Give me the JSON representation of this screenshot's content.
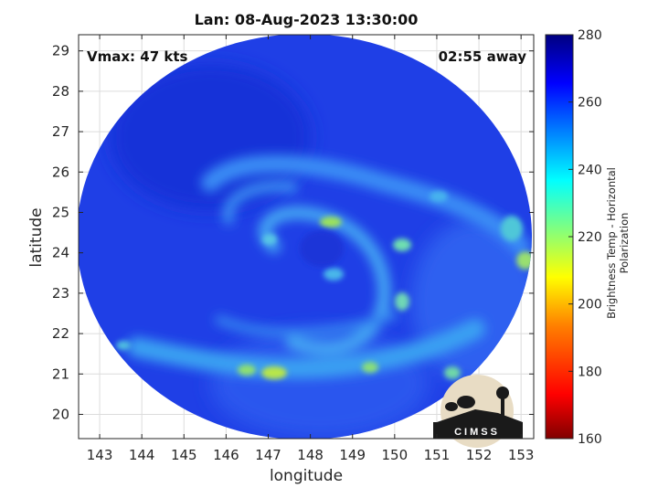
{
  "title": "Lan: 08-Aug-2023 13:30:00",
  "vmax_text": "Vmax: 47 kts",
  "away_text": "02:55 away",
  "xlabel": "longitude",
  "ylabel": "latitude",
  "x_ticks": [
    "143",
    "144",
    "145",
    "146",
    "147",
    "148",
    "149",
    "150",
    "151",
    "152",
    "153"
  ],
  "y_ticks": [
    "20",
    "21",
    "22",
    "23",
    "24",
    "25",
    "26",
    "27",
    "28",
    "29"
  ],
  "colorbar": {
    "label": "Brightness Temp - Horizontal Polarization",
    "ticks": [
      "160",
      "180",
      "200",
      "220",
      "240",
      "260",
      "280"
    ],
    "range": [
      160,
      280
    ],
    "colors": [
      "#800000",
      "#ff0000",
      "#ff8000",
      "#ffff00",
      "#80ff80",
      "#00ffff",
      "#0080ff",
      "#0000ff",
      "#000080"
    ]
  },
  "map": {
    "xlim": [
      142.5,
      153.3
    ],
    "ylim": [
      19.4,
      29.4
    ],
    "storm_center": {
      "lon": 148.4,
      "lat": 24.2
    },
    "swath_center": {
      "lon": 148.0,
      "lat": 24.3
    },
    "grid": true
  },
  "logo_text": "CIMSS"
}
